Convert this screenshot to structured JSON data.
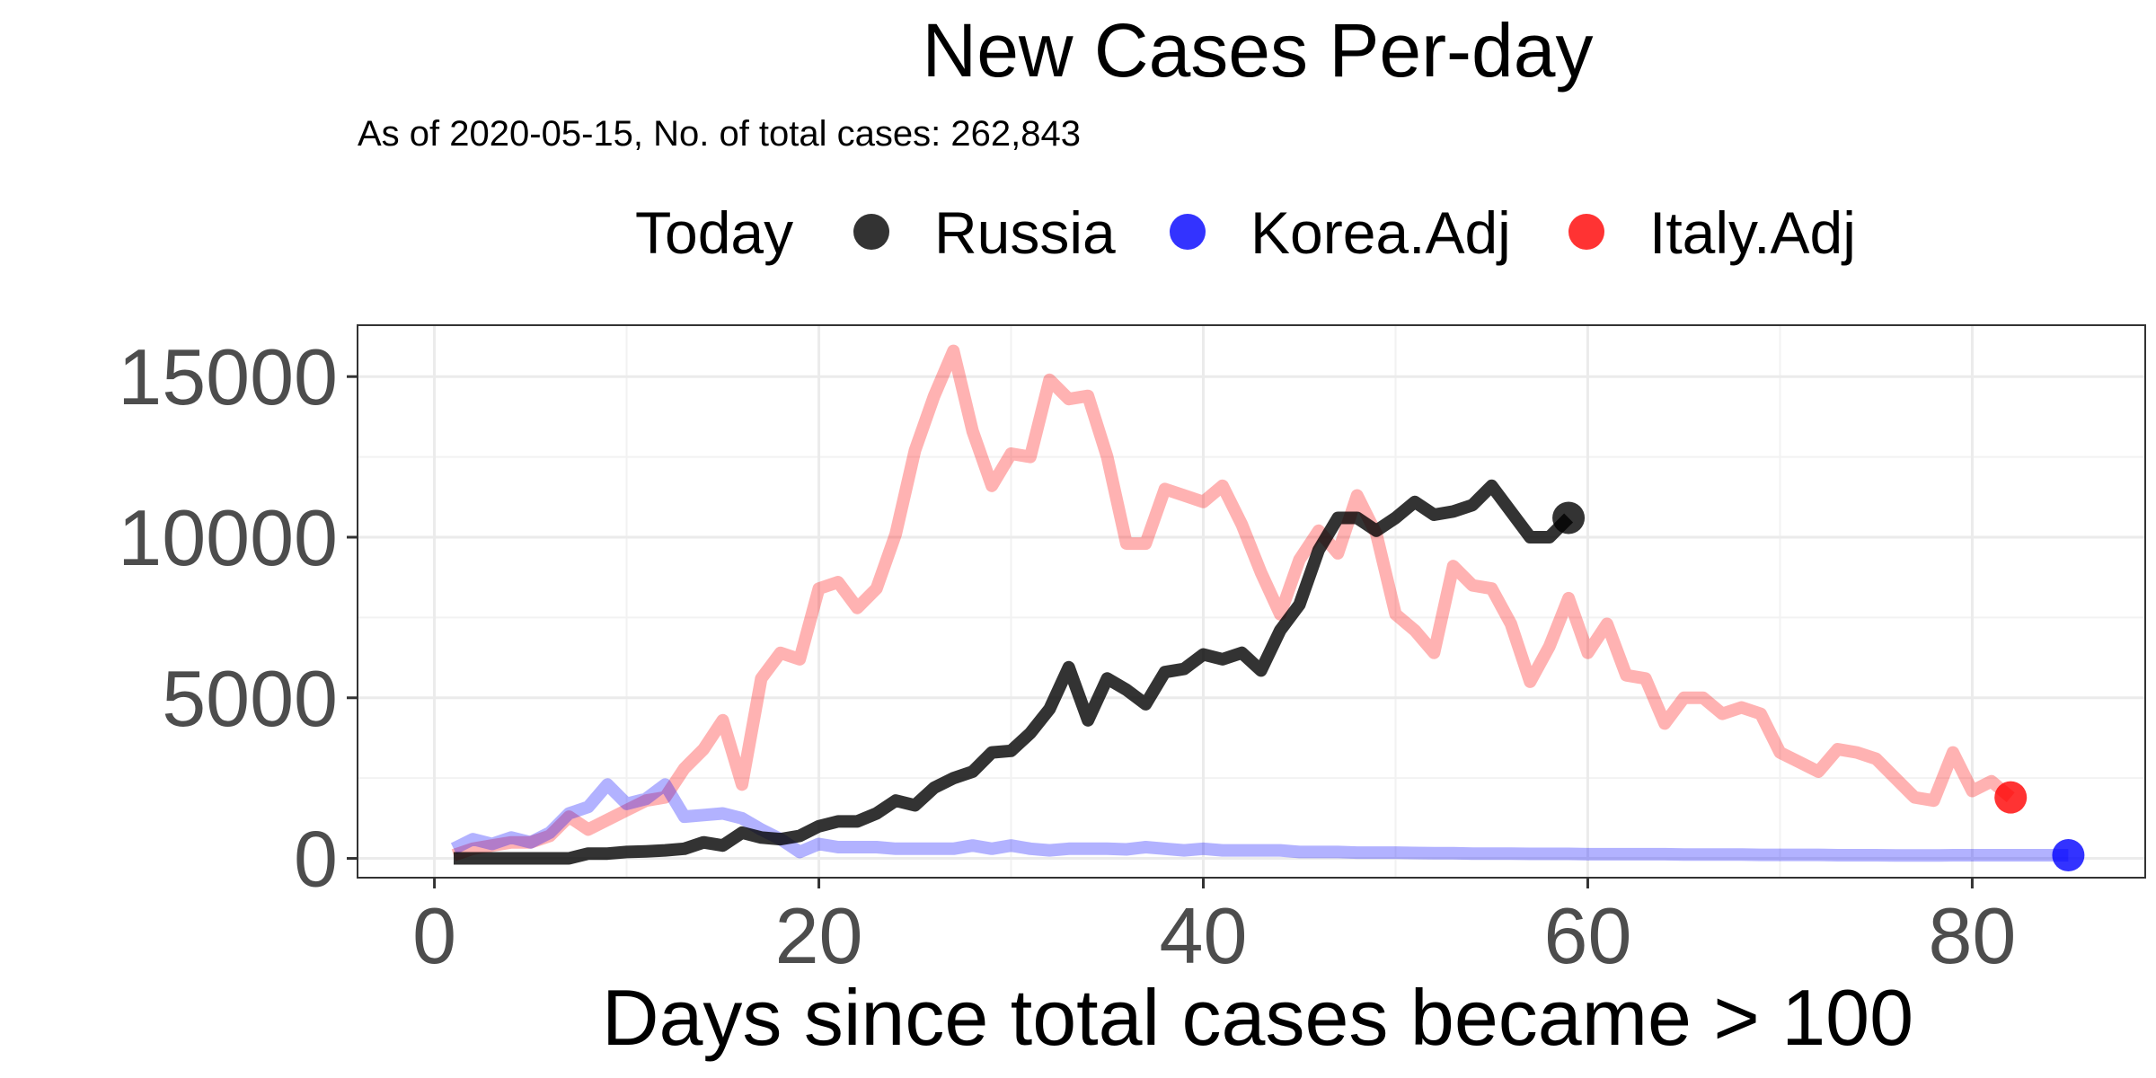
{
  "chart_data": {
    "type": "line",
    "title": "New Cases Per-day",
    "subtitle": "As of 2020-05-15, No. of total cases: 262,843",
    "xlabel": "Days since total cases became > 100",
    "ylabel": "",
    "xlim": [
      -4,
      89
    ],
    "ylim": [
      -600,
      16600
    ],
    "x_ticks": [
      0,
      20,
      40,
      60,
      80
    ],
    "y_ticks": [
      0,
      5000,
      10000,
      15000
    ],
    "grid": true,
    "legend": {
      "title": "Today",
      "position": "top"
    },
    "series": [
      {
        "name": "Russia",
        "color": "#000000",
        "opacity": 0.8,
        "x": [
          1,
          2,
          3,
          4,
          5,
          6,
          7,
          8,
          9,
          10,
          11,
          12,
          13,
          14,
          15,
          16,
          17,
          18,
          19,
          20,
          21,
          22,
          23,
          24,
          25,
          26,
          27,
          28,
          29,
          30,
          31,
          32,
          33,
          34,
          35,
          36,
          37,
          38,
          39,
          40,
          41,
          42,
          43,
          44,
          45,
          46,
          47,
          48,
          49,
          50,
          51,
          52,
          53,
          54,
          55,
          56,
          57,
          58,
          59
        ],
        "y": [
          0,
          0,
          0,
          0,
          0,
          0,
          0,
          150,
          150,
          200,
          220,
          250,
          300,
          500,
          400,
          800,
          650,
          600,
          700,
          1000,
          1150,
          1150,
          1400,
          1800,
          1650,
          2200,
          2500,
          2700,
          3300,
          3350,
          3900,
          4650,
          5950,
          4300,
          5600,
          5250,
          4800,
          5800,
          5900,
          6350,
          6200,
          6400,
          5850,
          7100,
          7900,
          9600,
          10600,
          10600,
          10200,
          10600,
          11100,
          10700,
          10800,
          11000,
          11600,
          10800,
          10000,
          10000,
          10600
        ]
      },
      {
        "name": "Korea.Adj",
        "color": "#0000ff",
        "opacity": 0.3,
        "x": [
          1,
          2,
          3,
          4,
          5,
          6,
          7,
          8,
          9,
          10,
          11,
          12,
          13,
          14,
          15,
          16,
          17,
          18,
          19,
          20,
          21,
          22,
          23,
          24,
          25,
          26,
          27,
          28,
          29,
          30,
          31,
          32,
          33,
          34,
          35,
          36,
          37,
          38,
          39,
          40,
          41,
          42,
          43,
          44,
          45,
          46,
          47,
          48,
          49,
          50,
          51,
          52,
          53,
          54,
          55,
          56,
          57,
          58,
          59,
          60,
          61,
          62,
          63,
          64,
          65,
          66,
          67,
          68,
          69,
          70,
          71,
          72,
          73,
          74,
          75,
          76,
          77,
          78,
          79,
          80,
          81,
          82,
          83,
          84,
          85
        ],
        "y": [
          300,
          600,
          450,
          650,
          500,
          800,
          1400,
          1600,
          2300,
          1700,
          1850,
          2300,
          1300,
          1350,
          1400,
          1250,
          900,
          600,
          200,
          450,
          350,
          350,
          350,
          300,
          300,
          300,
          300,
          400,
          300,
          400,
          300,
          250,
          300,
          300,
          300,
          280,
          350,
          300,
          250,
          300,
          250,
          250,
          250,
          250,
          200,
          200,
          200,
          180,
          180,
          180,
          170,
          160,
          160,
          150,
          150,
          150,
          140,
          140,
          140,
          130,
          130,
          130,
          130,
          130,
          120,
          120,
          120,
          120,
          110,
          110,
          110,
          110,
          100,
          100,
          100,
          90,
          90,
          90,
          100,
          100,
          100,
          100,
          100,
          100,
          100
        ]
      },
      {
        "name": "Italy.Adj",
        "color": "#ff0000",
        "opacity": 0.3,
        "x": [
          1,
          2,
          3,
          4,
          5,
          6,
          7,
          8,
          9,
          10,
          11,
          12,
          13,
          14,
          15,
          16,
          17,
          18,
          19,
          20,
          21,
          22,
          23,
          24,
          25,
          26,
          27,
          28,
          29,
          30,
          31,
          32,
          33,
          34,
          35,
          36,
          37,
          38,
          39,
          40,
          41,
          42,
          43,
          44,
          45,
          46,
          47,
          48,
          49,
          50,
          51,
          52,
          53,
          54,
          55,
          56,
          57,
          58,
          59,
          60,
          61,
          62,
          63,
          64,
          65,
          66,
          67,
          68,
          69,
          70,
          71,
          72,
          73,
          74,
          75,
          76,
          77,
          78,
          79,
          80,
          81,
          82
        ],
        "y": [
          100,
          300,
          400,
          500,
          500,
          700,
          1300,
          900,
          1200,
          1500,
          1800,
          1900,
          2800,
          3400,
          4300,
          2300,
          5600,
          6400,
          6200,
          8400,
          8600,
          7800,
          8400,
          10100,
          12700,
          14400,
          15800,
          13300,
          11600,
          12600,
          12500,
          14900,
          14300,
          14400,
          12500,
          9800,
          9800,
          11500,
          11300,
          11100,
          11600,
          10400,
          8900,
          7600,
          9300,
          10200,
          9500,
          11300,
          10100,
          7600,
          7100,
          6400,
          9100,
          8500,
          8400,
          7300,
          5500,
          6600,
          8100,
          6400,
          7300,
          5700,
          5600,
          4200,
          5000,
          5000,
          4500,
          4700,
          4500,
          3300,
          3000,
          2700,
          3400,
          3300,
          3100,
          2500,
          1900,
          1800,
          3300,
          2100,
          2400,
          1900
        ]
      }
    ],
    "today_points": [
      {
        "name": "Russia",
        "x": 59,
        "y": 10600,
        "color": "#000000",
        "opacity": 0.8
      },
      {
        "name": "Korea.Adj",
        "x": 85,
        "y": 100,
        "color": "#0000ff",
        "opacity": 0.8
      },
      {
        "name": "Italy.Adj",
        "x": 82,
        "y": 1900,
        "color": "#ff0000",
        "opacity": 0.8
      }
    ]
  }
}
